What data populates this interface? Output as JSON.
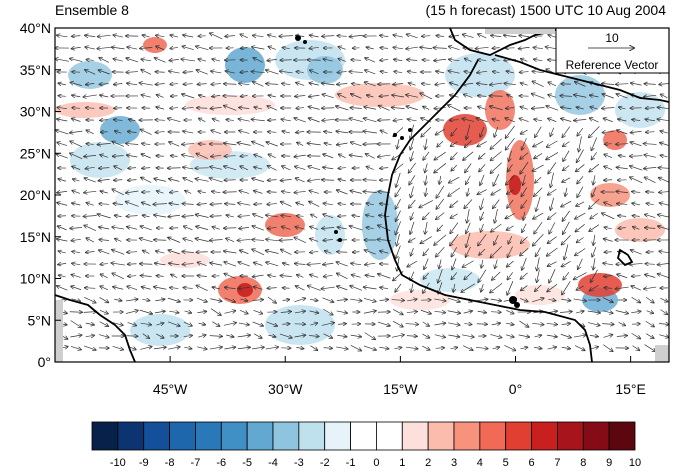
{
  "header": {
    "left_title": "Ensemble 8",
    "right_title": "(15 h forecast) 1500 UTC 10 Aug 2004"
  },
  "map": {
    "lat_ticks": [
      "40°N",
      "35°N",
      "30°N",
      "25°N",
      "20°N",
      "15°N",
      "10°N",
      "5°N",
      "0°"
    ],
    "lon_ticks": [
      "45°W",
      "30°W",
      "15°W",
      "0°",
      "15°E"
    ],
    "lon_tick_values": [
      -45,
      -30,
      -15,
      0,
      15
    ],
    "lat_tick_values": [
      40,
      35,
      30,
      25,
      20,
      15,
      10,
      5,
      0
    ]
  },
  "reference_vector": {
    "magnitude": "10",
    "label": "Reference Vector"
  },
  "colorbar": {
    "labels": [
      "-10",
      "-9",
      "-8",
      "-7",
      "-6",
      "-5",
      "-4",
      "-3",
      "-2",
      "-1",
      "0",
      "1",
      "2",
      "3",
      "4",
      "5",
      "6",
      "7",
      "8",
      "9",
      "10"
    ],
    "colors": [
      "#08214a",
      "#0b3470",
      "#14509a",
      "#1f67ac",
      "#2b78b8",
      "#4190c5",
      "#62a8d1",
      "#8fc4df",
      "#bfe1ee",
      "#e6f4fa",
      "#ffffff",
      "#ffffff",
      "#fde0dc",
      "#fbbcae",
      "#f7927d",
      "#f06a55",
      "#e23f33",
      "#c8201f",
      "#a8141c",
      "#850b16",
      "#5c0610"
    ]
  }
}
